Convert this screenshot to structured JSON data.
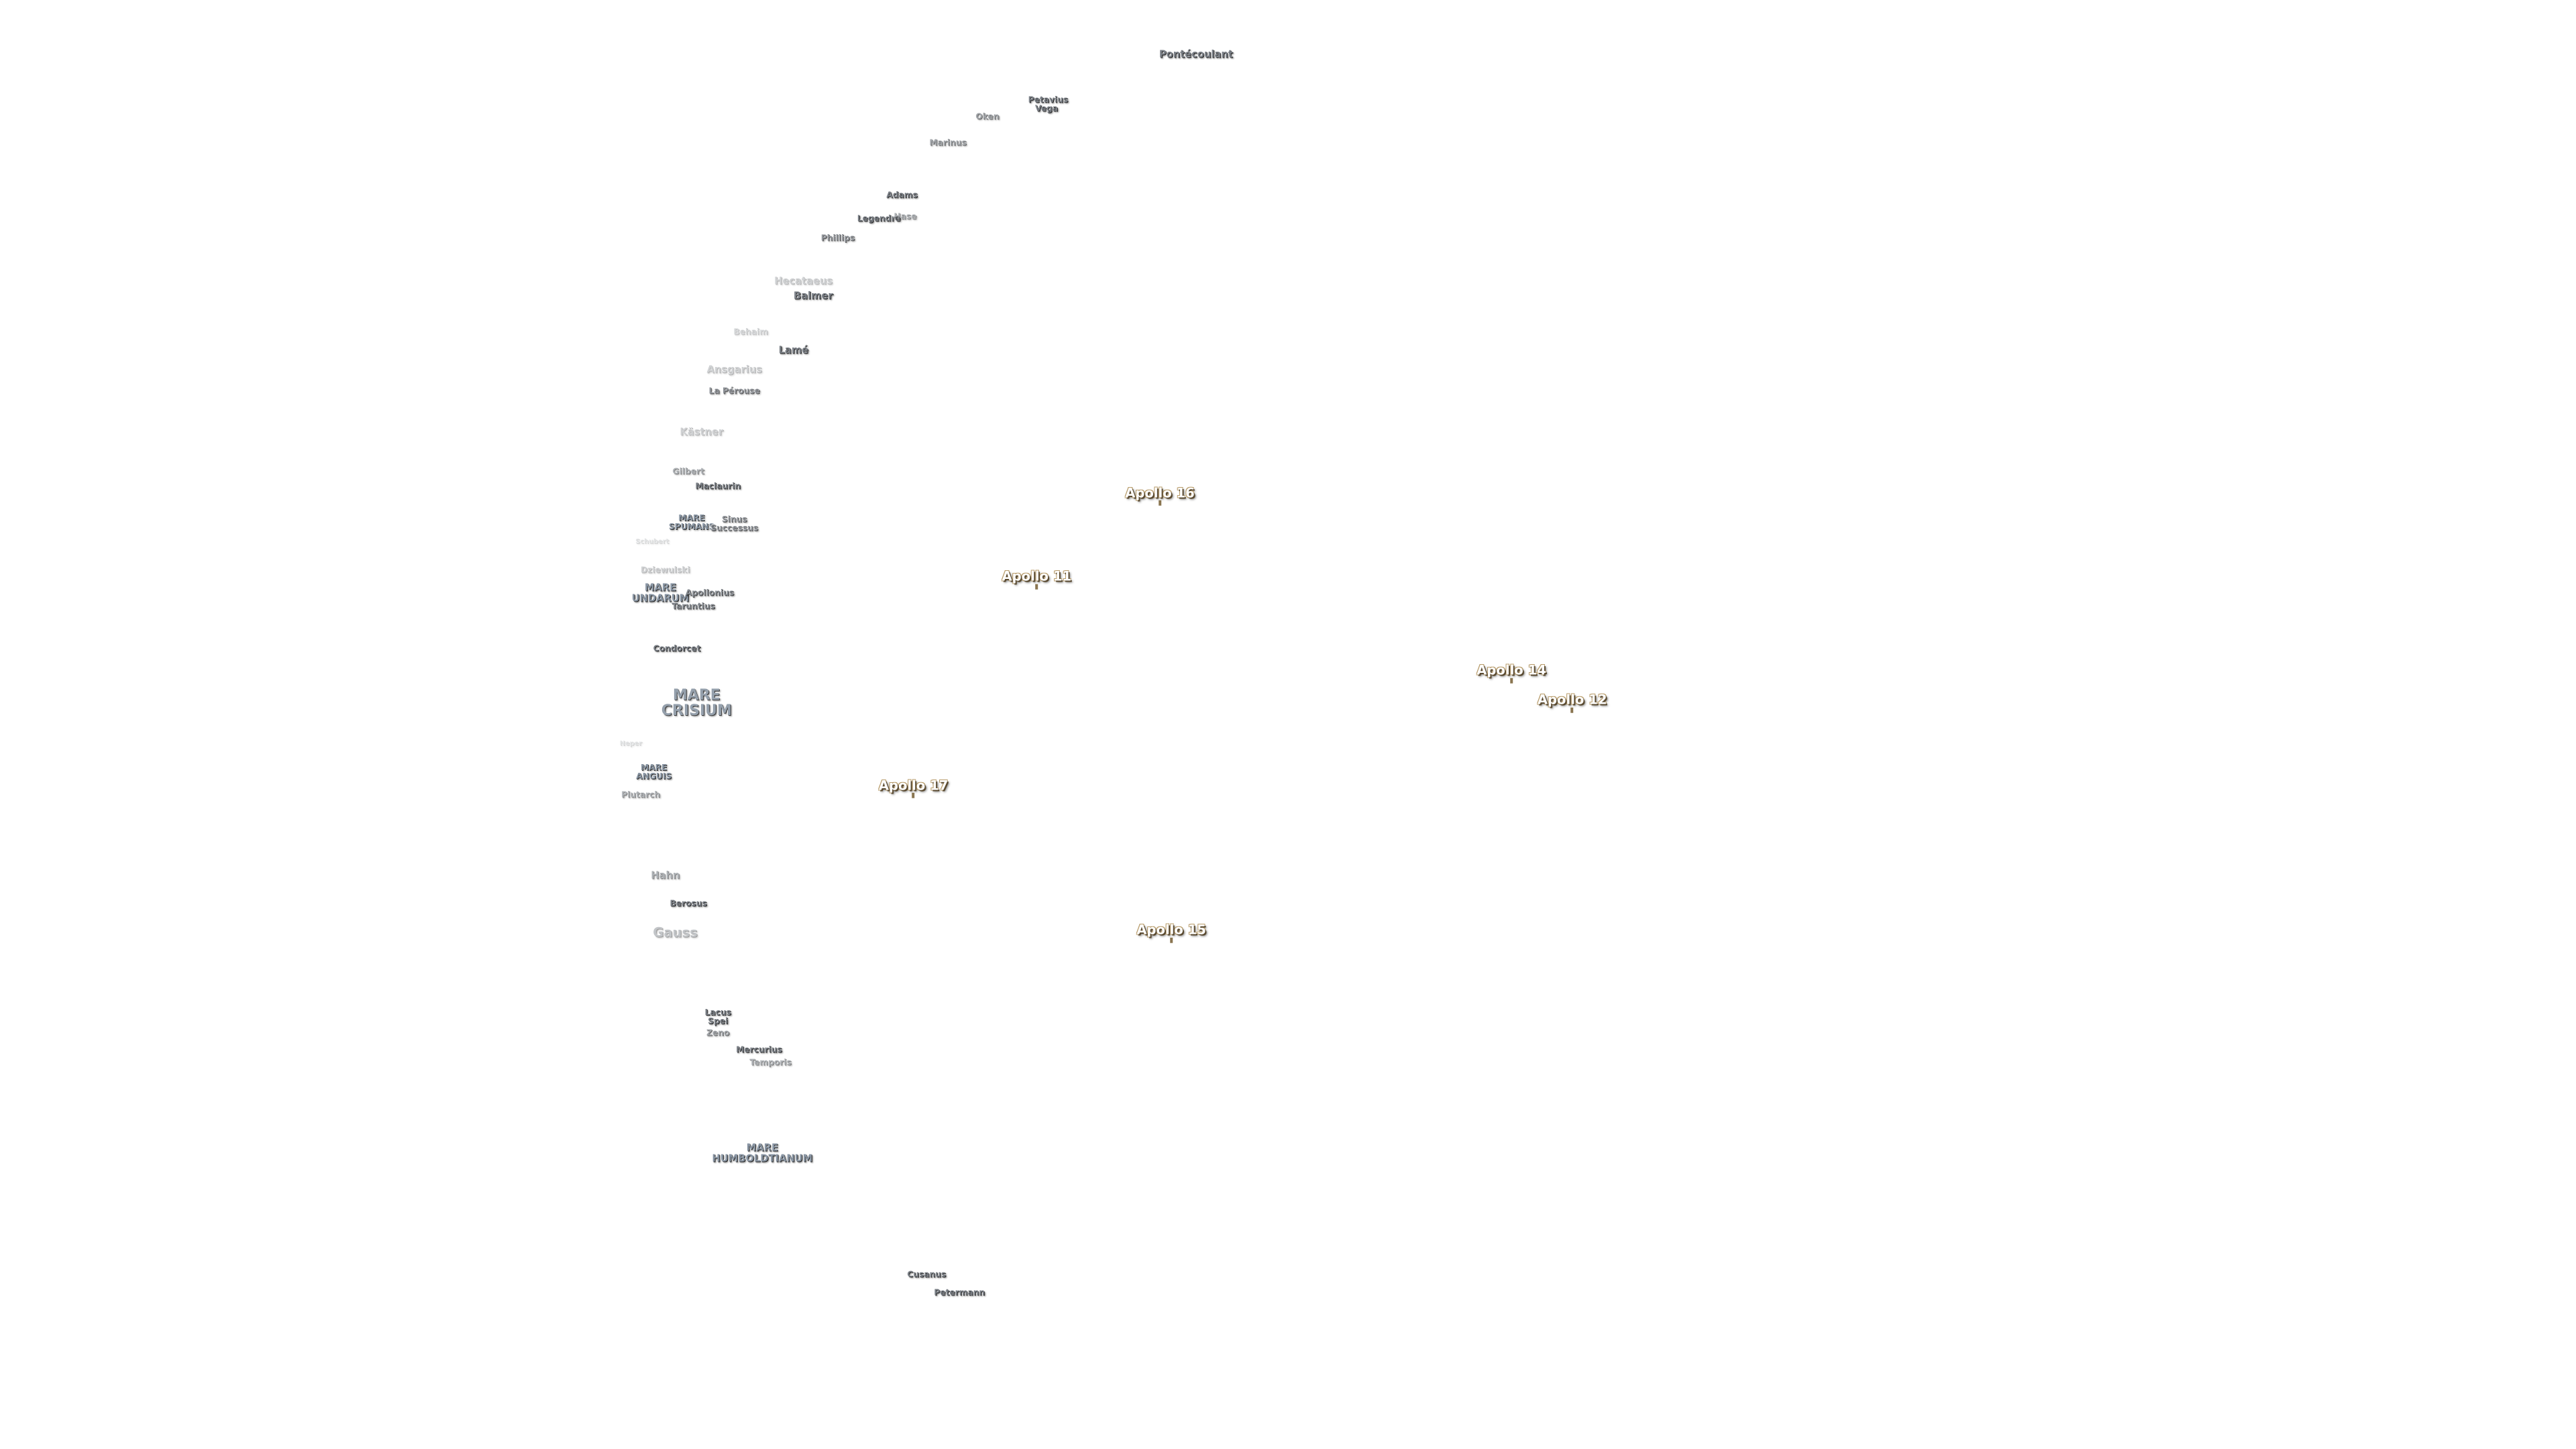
{
  "features": [
    {
      "lines": [
        "Pontécoulant"
      ]
    },
    {
      "lines": [
        "Petavius"
      ]
    },
    {
      "lines": [
        "Vega"
      ]
    },
    {
      "lines": [
        "Oken"
      ]
    },
    {
      "lines": [
        "Marinus"
      ]
    },
    {
      "lines": [
        "Adams"
      ]
    },
    {
      "lines": [
        "Legendre"
      ]
    },
    {
      "lines": [
        "Hase"
      ]
    },
    {
      "lines": [
        "Phillips"
      ]
    },
    {
      "lines": [
        "Hecataeus"
      ]
    },
    {
      "lines": [
        "Balmer"
      ]
    },
    {
      "lines": [
        "Behaim"
      ]
    },
    {
      "lines": [
        "Lamé"
      ]
    },
    {
      "lines": [
        "Ansgarius"
      ]
    },
    {
      "lines": [
        "La Pérouse"
      ]
    },
    {
      "lines": [
        "Kästner"
      ]
    },
    {
      "lines": [
        "Gilbert"
      ]
    },
    {
      "lines": [
        "Maclaurin"
      ]
    },
    {
      "lines": [
        "MARE",
        "SPUMANS"
      ]
    },
    {
      "lines": [
        "Sinus",
        "Successus"
      ]
    },
    {
      "lines": [
        "Schubert"
      ]
    },
    {
      "lines": [
        "Dziewulski"
      ]
    },
    {
      "lines": [
        "MARE",
        "UNDARUM"
      ]
    },
    {
      "lines": [
        "Apollonius"
      ]
    },
    {
      "lines": [
        "Taruntius"
      ]
    },
    {
      "lines": [
        "Condorcet"
      ]
    },
    {
      "lines": [
        "MARE",
        "CRISIUM"
      ]
    },
    {
      "lines": [
        "Neper"
      ]
    },
    {
      "lines": [
        "MARE",
        "ANGUIS"
      ]
    },
    {
      "lines": [
        "Plutarch"
      ]
    },
    {
      "lines": [
        "Hahn"
      ]
    },
    {
      "lines": [
        "Berosus"
      ]
    },
    {
      "lines": [
        "Gauss"
      ]
    },
    {
      "lines": [
        "Lacus",
        "Spei"
      ]
    },
    {
      "lines": [
        "Zeno"
      ]
    },
    {
      "lines": [
        "Mercurius"
      ]
    },
    {
      "lines": [
        "Temporis"
      ]
    },
    {
      "lines": [
        "MARE",
        "HUMBOLDTIANUM"
      ]
    },
    {
      "lines": [
        "Cusanus"
      ]
    },
    {
      "lines": [
        "Petermann"
      ]
    }
  ],
  "landing_sites": [
    "Apollo 16",
    "Apollo 11",
    "Apollo 14",
    "Apollo 12",
    "Apollo 17",
    "Apollo 15"
  ]
}
